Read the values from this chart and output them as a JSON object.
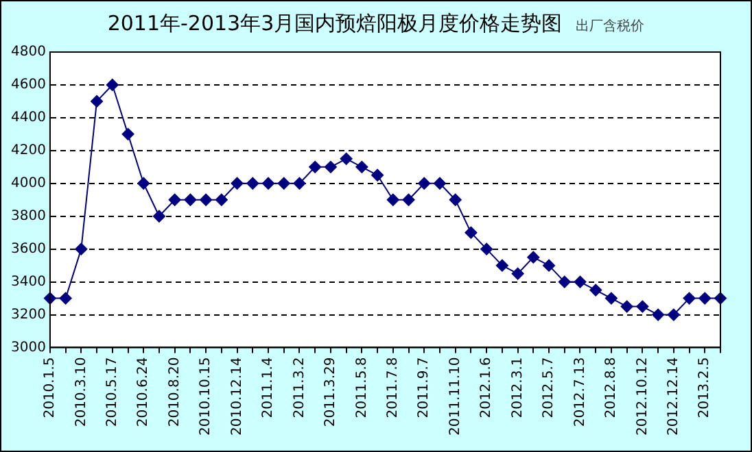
{
  "chart_data": {
    "type": "line",
    "title": "2011年-2013年3月国内预焙阳极月度价格走势图",
    "subtitle": "出厂含税价",
    "categories": [
      "2010.1.5",
      null,
      "2010.3.10",
      null,
      "2010.5.17",
      null,
      "2010.6.24",
      null,
      "2010.8.20",
      null,
      "2010.10.15",
      null,
      "2010.12.14",
      null,
      "2011.1.4",
      null,
      "2011.3.2",
      null,
      "2011.3.29",
      null,
      "2011.5.8",
      null,
      "2011.7.8",
      null,
      "2011.9.7",
      null,
      "2011.11.10",
      null,
      "2012.1.6",
      null,
      "2012.3.1",
      null,
      "2012.5.7",
      null,
      "2012.7.13",
      null,
      "2012.8.8",
      null,
      "2012.10.12",
      null,
      "2012.12.14",
      null,
      "2013.2.5",
      null
    ],
    "series": [
      {
        "color": "#000080",
        "values": [
          3300,
          3300,
          3600,
          4500,
          4600,
          4300,
          4000,
          3800,
          3900,
          3900,
          3900,
          3900,
          4000,
          4000,
          4000,
          4000,
          4000,
          4100,
          4100,
          4150,
          4100,
          4050,
          3900,
          3900,
          4000,
          4000,
          3900,
          3700,
          3600,
          3500,
          3450,
          3550,
          3500,
          3400,
          3400,
          3350,
          3300,
          3250,
          3250,
          3200,
          3200,
          3300,
          3300,
          3300
        ]
      }
    ],
    "ylim": [
      3000,
      4800
    ],
    "yticks": [
      3000,
      3200,
      3400,
      3600,
      3800,
      4000,
      4200,
      4400,
      4600,
      4800
    ],
    "grid": "y",
    "legend": false,
    "marker": "diamond",
    "line_style": "solid"
  }
}
